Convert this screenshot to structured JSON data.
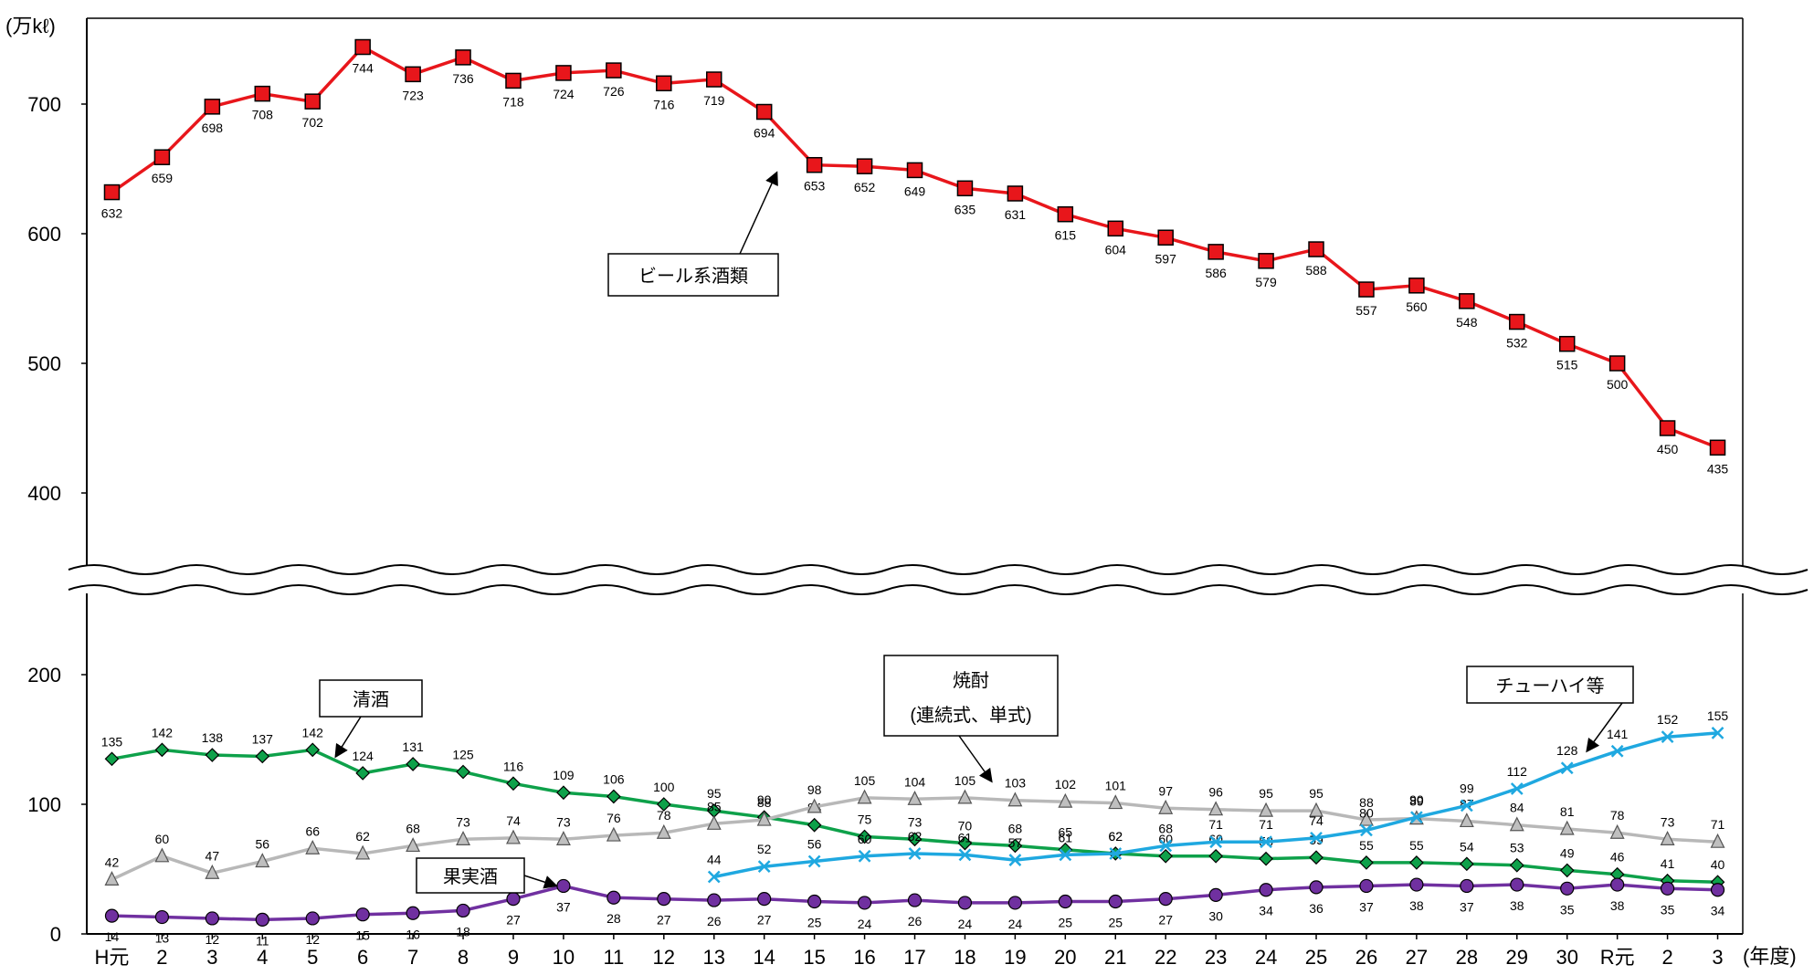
{
  "chart_data": {
    "type": "line",
    "title": "",
    "y_unit": "(万kℓ)",
    "x_unit": "(年度)",
    "categories": [
      "H元",
      "2",
      "3",
      "4",
      "5",
      "6",
      "7",
      "8",
      "9",
      "10",
      "11",
      "12",
      "13",
      "14",
      "15",
      "16",
      "17",
      "18",
      "19",
      "20",
      "21",
      "22",
      "23",
      "24",
      "25",
      "26",
      "27",
      "28",
      "29",
      "30",
      "R元",
      "2",
      "3"
    ],
    "y_axis": {
      "broken": true,
      "lower_range": [
        0,
        200
      ],
      "upper_range": [
        400,
        700
      ],
      "tick_labels": [
        "0",
        "100",
        "200",
        "400",
        "500",
        "600",
        "700"
      ]
    },
    "series": [
      {
        "name": "ビール系酒類",
        "color": "#e8161b",
        "marker": "square",
        "values": [
          632,
          659,
          698,
          708,
          702,
          744,
          723,
          736,
          718,
          724,
          726,
          716,
          719,
          694,
          653,
          652,
          649,
          635,
          631,
          615,
          604,
          597,
          586,
          579,
          588,
          557,
          560,
          548,
          532,
          515,
          500,
          450,
          435
        ]
      },
      {
        "name": "清酒",
        "color": "#0ea14a",
        "marker": "diamond",
        "values": [
          135,
          142,
          138,
          137,
          142,
          124,
          131,
          125,
          116,
          109,
          106,
          100,
          95,
          90,
          84,
          75,
          73,
          70,
          68,
          65,
          62,
          60,
          60,
          58,
          59,
          55,
          55,
          54,
          53,
          49,
          46,
          41,
          40
        ]
      },
      {
        "name": "焼酎(連続式、単式)",
        "color": "#b8b8b8",
        "marker": "triangle",
        "values": [
          42,
          60,
          47,
          56,
          66,
          62,
          68,
          73,
          74,
          73,
          76,
          78,
          85,
          88,
          98,
          105,
          104,
          105,
          103,
          102,
          101,
          97,
          96,
          95,
          95,
          88,
          89,
          87,
          84,
          81,
          78,
          73,
          71
        ]
      },
      {
        "name": "チューハイ等",
        "color": "#1fa8e0",
        "marker": "x",
        "values": [
          null,
          null,
          null,
          null,
          null,
          null,
          null,
          null,
          null,
          null,
          null,
          null,
          44,
          52,
          56,
          60,
          62,
          61,
          57,
          61,
          62,
          68,
          71,
          71,
          74,
          80,
          90,
          99,
          112,
          128,
          141,
          152,
          155
        ]
      },
      {
        "name": "果実酒",
        "color": "#7030a0",
        "marker": "circle",
        "values": [
          14,
          13,
          12,
          11,
          12,
          15,
          16,
          18,
          27,
          37,
          28,
          27,
          26,
          27,
          25,
          24,
          26,
          24,
          24,
          25,
          25,
          27,
          30,
          34,
          36,
          37,
          38,
          37,
          38,
          35,
          38,
          35,
          34
        ]
      }
    ],
    "data_labels": {
      "beer": [
        "632",
        "659",
        "698",
        "708",
        "702",
        "744",
        "723",
        "736",
        "718",
        "724",
        "726",
        "716",
        "719",
        "694",
        "653",
        "652",
        "649",
        "635",
        "631",
        "615",
        "604",
        "597",
        "586",
        "579",
        "588",
        "557",
        "560",
        "548",
        "532",
        "515",
        "500",
        "450",
        "435"
      ],
      "sake": [
        "135",
        "142",
        "138",
        "137",
        "142",
        "124",
        "131",
        "125",
        "116",
        "109",
        "106",
        "100",
        "95",
        "90",
        "84",
        "75",
        "73",
        "70",
        "68",
        "65",
        "62",
        "60",
        "60",
        "58",
        "59",
        "55",
        "55",
        "54",
        "53",
        "49",
        "46",
        "41",
        "40"
      ],
      "shochu": [
        "42",
        "60",
        "47",
        "56",
        "66",
        "62",
        "68",
        "73",
        "74",
        "73",
        "76",
        "78",
        "85",
        "88",
        "98",
        "105",
        "104",
        "105",
        "103",
        "102",
        "101",
        "97",
        "96",
        "95",
        "95",
        "88",
        "89",
        "87",
        "84",
        "81",
        "78",
        "73",
        "71"
      ],
      "chuhai": [
        "",
        "",
        "",
        "",
        "",
        "",
        "",
        "",
        "",
        "",
        "",
        "",
        "44",
        "52",
        "56",
        "60",
        "62",
        "61",
        "57",
        "61",
        "62",
        "68",
        "71",
        "71",
        "74",
        "80",
        "90",
        "99",
        "112",
        "128",
        "141",
        "152",
        "155"
      ],
      "wine": [
        "14",
        "13",
        "12",
        "11",
        "12",
        "15",
        "16",
        "18",
        "27",
        "37",
        "28",
        "27",
        "26",
        "27",
        "25",
        "24",
        "26",
        "24",
        "24",
        "25",
        "25",
        "27",
        "30",
        "34",
        "36",
        "37",
        "38",
        "37",
        "38",
        "35",
        "38",
        "35",
        "34"
      ]
    },
    "callouts": {
      "beer": "ビール系酒類",
      "sake": "清酒",
      "shochu_line1": "焼酎",
      "shochu_line2": "(連続式、単式)",
      "chuhai": "チューハイ等",
      "wine": "果実酒"
    }
  }
}
